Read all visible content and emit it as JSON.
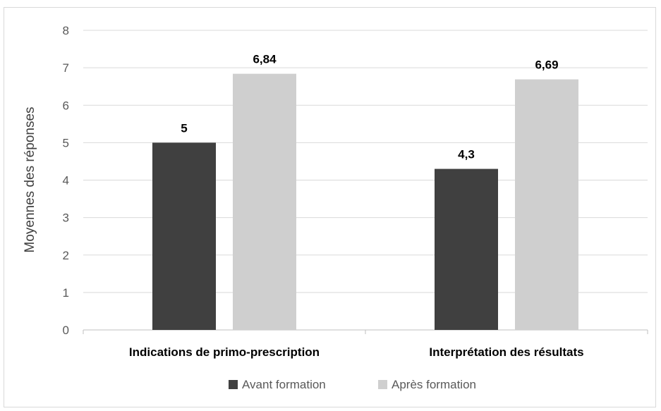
{
  "chart_data": {
    "type": "bar",
    "title": "",
    "xlabel": "",
    "ylabel": "Moyennes des réponses",
    "categories": [
      "Indications de primo-prescription",
      "Interprétation des résultats"
    ],
    "series": [
      {
        "name": "Avant formation",
        "values": [
          5,
          4.3
        ],
        "labels": [
          "5",
          "4,3"
        ],
        "color": "#404040"
      },
      {
        "name": "Après formation",
        "values": [
          6.84,
          6.69
        ],
        "labels": [
          "6,84",
          "6,69"
        ],
        "color": "#cfcfcf"
      }
    ],
    "ylim": [
      0,
      8
    ],
    "yticks": [
      "0",
      "1",
      "2",
      "3",
      "4",
      "5",
      "6",
      "7",
      "8"
    ],
    "grid": true,
    "legend_position": "bottom",
    "colors": {
      "gridline": "#d9d9d9",
      "axis": "#bfbfbf",
      "border": "#d9d9d9"
    }
  }
}
